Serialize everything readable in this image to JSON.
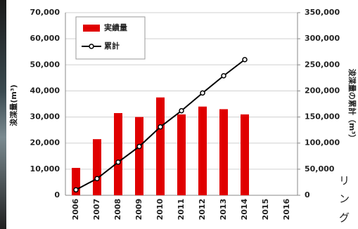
{
  "chart_data": {
    "type": "bar-line",
    "y_label": "浚渫量(m³)",
    "y2_label": "浚渫量の累計（m³）",
    "categories": [
      "2006",
      "2007",
      "2008",
      "2009",
      "2010",
      "2011",
      "2012",
      "2013",
      "2014",
      "2015",
      "2016"
    ],
    "series": [
      {
        "name": "実績量",
        "type": "bar",
        "color": "#e00000",
        "values": [
          10500,
          21500,
          31500,
          30000,
          37500,
          31000,
          34000,
          33000,
          31000,
          null,
          null
        ]
      },
      {
        "name": "累計",
        "type": "line",
        "axis": "y2",
        "color": "#000000",
        "values": [
          10500,
          32000,
          63500,
          93500,
          131000,
          162000,
          196000,
          229000,
          260000,
          null,
          null
        ]
      }
    ],
    "ylim": [
      0,
      70000
    ],
    "yticks": [
      0,
      {
        "value": 10000,
        "label": "10,000"
      },
      {
        "value": 20000,
        "label": "20,000"
      },
      {
        "value": 30000,
        "label": "30,000"
      },
      {
        "value": 40000,
        "label": "40,000"
      },
      {
        "value": 50000,
        "label": "50,000"
      },
      {
        "value": 60000,
        "label": "60,000"
      },
      {
        "value": 70000,
        "label": "70,000"
      }
    ],
    "y2lim": [
      0,
      350000
    ],
    "y2ticks": [
      0,
      {
        "value": 50000,
        "label": "50,000"
      },
      {
        "value": 100000,
        "label": "100,000"
      },
      {
        "value": 150000,
        "label": "150,000"
      },
      {
        "value": 200000,
        "label": "200,000"
      },
      {
        "value": 250000,
        "label": "250,000"
      },
      {
        "value": 300000,
        "label": "300,000"
      },
      {
        "value": 350000,
        "label": "350,000"
      }
    ],
    "grid": true
  },
  "side_text": [
    "リ",
    "ン",
    "グ"
  ]
}
